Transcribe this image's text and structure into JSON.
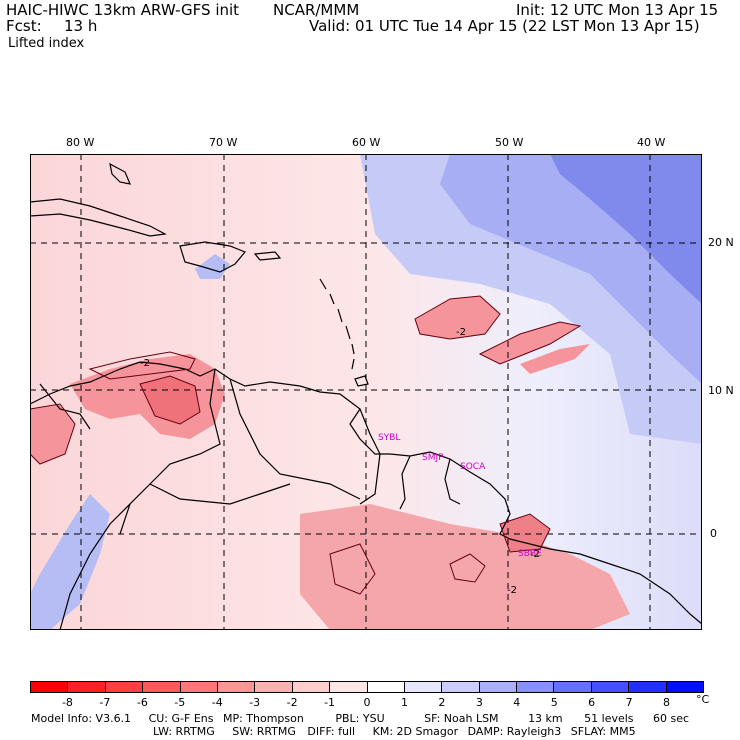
{
  "header": {
    "model": "HAIC-HIWC 13km ARW-GFS init",
    "org": "NCAR/MMM",
    "init": "Init: 12 UTC Mon 13 Apr 15",
    "fcst_label": "Fcst:",
    "fcst_value": "13 h",
    "valid": "Valid: 01 UTC Tue 14 Apr 15 (22 LST Mon 13 Apr 15)",
    "field": "Lifted index"
  },
  "map": {
    "lon_labels": [
      "80 W",
      "70 W",
      "60 W",
      "50 W",
      "40 W"
    ],
    "lat_labels": [
      "20 N",
      "10 N",
      "0"
    ],
    "contour_labels": [
      "-2",
      "-2",
      "-2",
      "-2"
    ],
    "stations": [
      "SYBL",
      "SMJP",
      "SOCA",
      "SBBE"
    ],
    "colors": {
      "neg_strong": "#f0646e",
      "neg_mid": "#f89aa0",
      "neg_light": "#fbc8cc",
      "pos_light": "#dcdcfa",
      "pos_mid": "#a8aef4",
      "pos_strong": "#6f7ce8",
      "coast": "#000000",
      "station": "#cc00cc"
    }
  },
  "colorbar": {
    "labels": [
      "-8",
      "-7",
      "-6",
      "-5",
      "-4",
      "-3",
      "-2",
      "-1",
      "0",
      "1",
      "2",
      "3",
      "4",
      "5",
      "6",
      "7",
      "8"
    ],
    "unit": "°C",
    "colors": [
      "#ff0000",
      "#ff2020",
      "#ff4040",
      "#ff5a5a",
      "#ff7878",
      "#ff9696",
      "#ffb0b0",
      "#ffcccc",
      "#ffe6e6",
      "#ffffff",
      "#e6e6ff",
      "#ccccff",
      "#aab0ff",
      "#8890ff",
      "#6670ff",
      "#4450ff",
      "#2230ff",
      "#0010ff"
    ]
  },
  "info": {
    "line1": [
      "Model Info: V3.6.1",
      "CU: G-F Ens",
      "MP: Thompson",
      "PBL: YSU",
      "SF: Noah LSM",
      "13 km",
      "51 levels",
      "60 sec"
    ],
    "line2": [
      "LW: RRTMG",
      "SW: RRTMG",
      "DIFF: full",
      "KM: 2D Smagor",
      "DAMP: Rayleigh3",
      "SFLAY: MM5"
    ]
  }
}
